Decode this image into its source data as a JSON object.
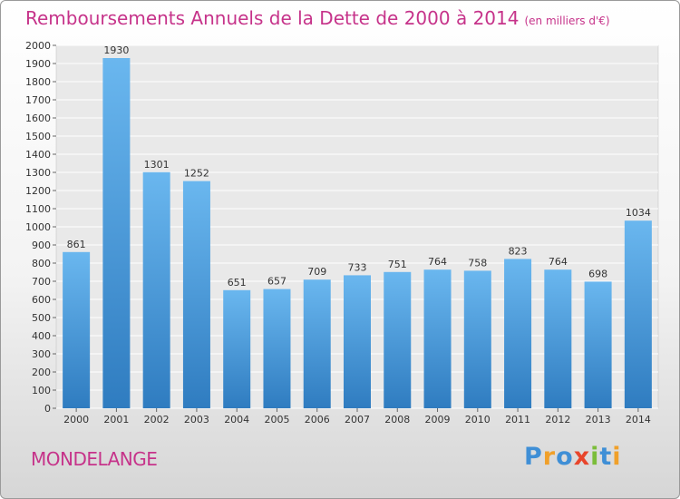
{
  "title": "Remboursements Annuels de la Dette de 2000 à 2014",
  "subtitle": "(en milliers d'€)",
  "city": "MONDELANGE",
  "logo": {
    "text": "Proxiti",
    "letters": [
      {
        "char": "P",
        "color": "#3f8fd6"
      },
      {
        "char": "r",
        "color": "#f0a02a"
      },
      {
        "char": "o",
        "color": "#3f8fd6"
      },
      {
        "char": "x",
        "color": "#e8452b"
      },
      {
        "char": "i",
        "color": "#7bbd3a"
      },
      {
        "char": "t",
        "color": "#3f8fd6"
      },
      {
        "char": "i",
        "color": "#f0a02a"
      }
    ]
  },
  "colors": {
    "title": "#c6338a",
    "bar_top": "#6ab7ef",
    "bar_bottom": "#2f7cc0"
  },
  "chart_data": {
    "type": "bar",
    "categories": [
      "2000",
      "2001",
      "2002",
      "2003",
      "2004",
      "2005",
      "2006",
      "2007",
      "2008",
      "2009",
      "2010",
      "2011",
      "2012",
      "2013",
      "2014"
    ],
    "values": [
      861,
      1930,
      1301,
      1252,
      651,
      657,
      709,
      733,
      751,
      764,
      758,
      823,
      764,
      698,
      1034
    ],
    "ylim": [
      0,
      2000
    ],
    "ytick_step": 100,
    "grid": true,
    "data_labels": true
  }
}
